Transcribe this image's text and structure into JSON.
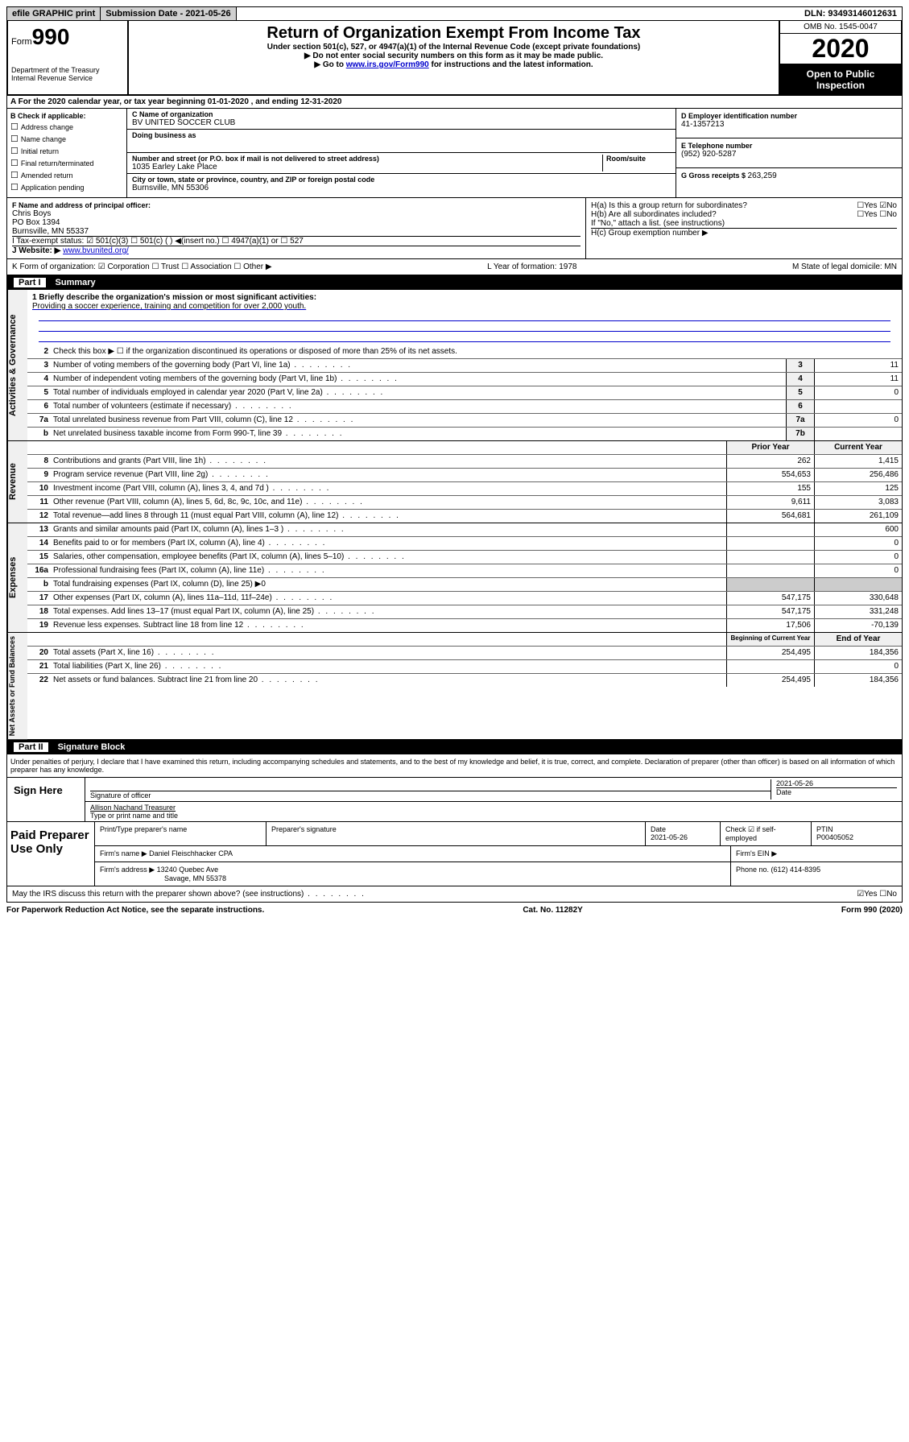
{
  "topbar": {
    "efile": "efile GRAPHIC print",
    "submission": "Submission Date - 2021-05-26",
    "dln": "DLN: 93493146012631"
  },
  "header": {
    "form_label": "Form",
    "form_number": "990",
    "dept": "Department of the Treasury\nInternal Revenue Service",
    "title": "Return of Organization Exempt From Income Tax",
    "under": "Under section 501(c), 527, or 4947(a)(1) of the Internal Revenue Code (except private foundations)",
    "note1": "Do not enter social security numbers on this form as it may be made public.",
    "note2_pre": "Go to ",
    "note2_link": "www.irs.gov/Form990",
    "note2_post": " for instructions and the latest information.",
    "omb": "OMB No. 1545-0047",
    "year": "2020",
    "inspection": "Open to Public Inspection"
  },
  "row_a": "A  For the 2020 calendar year, or tax year beginning 01-01-2020    , and ending 12-31-2020",
  "box_b": {
    "title": "B Check if applicable:",
    "items": [
      "Address change",
      "Name change",
      "Initial return",
      "Final return/terminated",
      "Amended return",
      "Application pending"
    ]
  },
  "box_c": {
    "name_label": "C Name of organization",
    "name": "BV UNITED SOCCER CLUB",
    "dba_label": "Doing business as",
    "dba": "",
    "addr_label": "Number and street (or P.O. box if mail is not delivered to street address)",
    "room_label": "Room/suite",
    "addr": "1035 Earley Lake Place",
    "city_label": "City or town, state or province, country, and ZIP or foreign postal code",
    "city": "Burnsville, MN  55306"
  },
  "box_d": {
    "label": "D Employer identification number",
    "value": "41-1357213"
  },
  "box_e": {
    "label": "E Telephone number",
    "value": "(952) 920-5287"
  },
  "box_g": {
    "label": "G Gross receipts $ ",
    "value": "263,259"
  },
  "box_f": {
    "label": "F  Name and address of principal officer:",
    "name": "Chris Boys",
    "addr1": "PO Box 1394",
    "addr2": "Burnsville, MN  55337"
  },
  "box_h": {
    "a": "H(a)  Is this a group return for subordinates?",
    "a_ans": "☐Yes ☑No",
    "b": "H(b)  Are all subordinates included?",
    "b_ans": "☐Yes ☐No",
    "b_note": "If \"No,\" attach a list. (see instructions)",
    "c": "H(c)  Group exemption number ▶"
  },
  "row_i": "I    Tax-exempt status:      ☑ 501(c)(3)    ☐  501(c) (  ) ◀(insert no.)      ☐ 4947(a)(1) or   ☐ 527",
  "row_j_label": "J   Website: ▶  ",
  "row_j_link": "www.bvunited.org/",
  "row_k": {
    "left": "K Form of organization:  ☑ Corporation  ☐ Trust  ☐ Association  ☐ Other ▶",
    "mid": "L Year of formation: 1978",
    "right": "M State of legal domicile: MN"
  },
  "part1": {
    "label": "Part I",
    "title": "Summary"
  },
  "governance": {
    "l1_label": "1  Briefly describe the organization's mission or most significant activities:",
    "l1_text": "Providing a soccer experience, training and competition for over 2,000 youth.",
    "l2": "Check this box ▶ ☐  if the organization discontinued its operations or disposed of more than 25% of its net assets.",
    "rows": [
      {
        "n": "3",
        "t": "Number of voting members of the governing body (Part VI, line 1a)",
        "box": "3",
        "v": "11"
      },
      {
        "n": "4",
        "t": "Number of independent voting members of the governing body (Part VI, line 1b)",
        "box": "4",
        "v": "11"
      },
      {
        "n": "5",
        "t": "Total number of individuals employed in calendar year 2020 (Part V, line 2a)",
        "box": "5",
        "v": "0"
      },
      {
        "n": "6",
        "t": "Total number of volunteers (estimate if necessary)",
        "box": "6",
        "v": ""
      },
      {
        "n": "7a",
        "t": "Total unrelated business revenue from Part VIII, column (C), line 12",
        "box": "7a",
        "v": "0"
      },
      {
        "n": "b",
        "t": "Net unrelated business taxable income from Form 990-T, line 39",
        "box": "7b",
        "v": ""
      }
    ]
  },
  "revenue": {
    "head_prior": "Prior Year",
    "head_current": "Current Year",
    "rows": [
      {
        "n": "8",
        "t": "Contributions and grants (Part VIII, line 1h)",
        "p": "262",
        "c": "1,415"
      },
      {
        "n": "9",
        "t": "Program service revenue (Part VIII, line 2g)",
        "p": "554,653",
        "c": "256,486"
      },
      {
        "n": "10",
        "t": "Investment income (Part VIII, column (A), lines 3, 4, and 7d )",
        "p": "155",
        "c": "125"
      },
      {
        "n": "11",
        "t": "Other revenue (Part VIII, column (A), lines 5, 6d, 8c, 9c, 10c, and 11e)",
        "p": "9,611",
        "c": "3,083"
      },
      {
        "n": "12",
        "t": "Total revenue—add lines 8 through 11 (must equal Part VIII, column (A), line 12)",
        "p": "564,681",
        "c": "261,109"
      }
    ]
  },
  "expenses": {
    "rows": [
      {
        "n": "13",
        "t": "Grants and similar amounts paid (Part IX, column (A), lines 1–3 )",
        "p": "",
        "c": "600"
      },
      {
        "n": "14",
        "t": "Benefits paid to or for members (Part IX, column (A), line 4)",
        "p": "",
        "c": "0"
      },
      {
        "n": "15",
        "t": "Salaries, other compensation, employee benefits (Part IX, column (A), lines 5–10)",
        "p": "",
        "c": "0"
      },
      {
        "n": "16a",
        "t": "Professional fundraising fees (Part IX, column (A), line 11e)",
        "p": "",
        "c": "0"
      },
      {
        "n": "b",
        "t": "Total fundraising expenses (Part IX, column (D), line 25) ▶0",
        "p": "§",
        "c": "§"
      },
      {
        "n": "17",
        "t": "Other expenses (Part IX, column (A), lines 11a–11d, 11f–24e)",
        "p": "547,175",
        "c": "330,648"
      },
      {
        "n": "18",
        "t": "Total expenses. Add lines 13–17 (must equal Part IX, column (A), line 25)",
        "p": "547,175",
        "c": "331,248"
      },
      {
        "n": "19",
        "t": "Revenue less expenses. Subtract line 18 from line 12",
        "p": "17,506",
        "c": "-70,139"
      }
    ]
  },
  "netassets": {
    "head_prior": "Beginning of Current Year",
    "head_current": "End of Year",
    "rows": [
      {
        "n": "20",
        "t": "Total assets (Part X, line 16)",
        "p": "254,495",
        "c": "184,356"
      },
      {
        "n": "21",
        "t": "Total liabilities (Part X, line 26)",
        "p": "",
        "c": "0"
      },
      {
        "n": "22",
        "t": "Net assets or fund balances. Subtract line 21 from line 20",
        "p": "254,495",
        "c": "184,356"
      }
    ]
  },
  "part2": {
    "label": "Part II",
    "title": "Signature Block"
  },
  "perjury": "Under penalties of perjury, I declare that I have examined this return, including accompanying schedules and statements, and to the best of my knowledge and belief, it is true, correct, and complete. Declaration of preparer (other than officer) is based on all information of which preparer has any knowledge.",
  "sign": {
    "here": "Sign Here",
    "sig_label": "Signature of officer",
    "date": "2021-05-26",
    "date_label": "Date",
    "name": "Allison Nachand  Treasurer",
    "name_label": "Type or print name and title"
  },
  "paid": {
    "title": "Paid Preparer Use Only",
    "h1": "Print/Type preparer's name",
    "h2": "Preparer's signature",
    "h3": "Date",
    "h3v": "2021-05-26",
    "h4": "Check ☑ if self-employed",
    "h5": "PTIN",
    "h5v": "P00405052",
    "firm_label": "Firm's name      ▶",
    "firm": "Daniel Fleischhacker CPA",
    "ein_label": "Firm's EIN ▶",
    "addr_label": "Firm's address ▶",
    "addr1": "13240 Quebec Ave",
    "addr2": "Savage, MN  55378",
    "phone_label": "Phone no. ",
    "phone": "(612) 414-8395"
  },
  "discuss": "May the IRS discuss this return with the preparer shown above? (see instructions)",
  "discuss_ans": "☑Yes  ☐No",
  "footer": {
    "left": "For Paperwork Reduction Act Notice, see the separate instructions.",
    "mid": "Cat. No. 11282Y",
    "right": "Form 990 (2020)"
  }
}
